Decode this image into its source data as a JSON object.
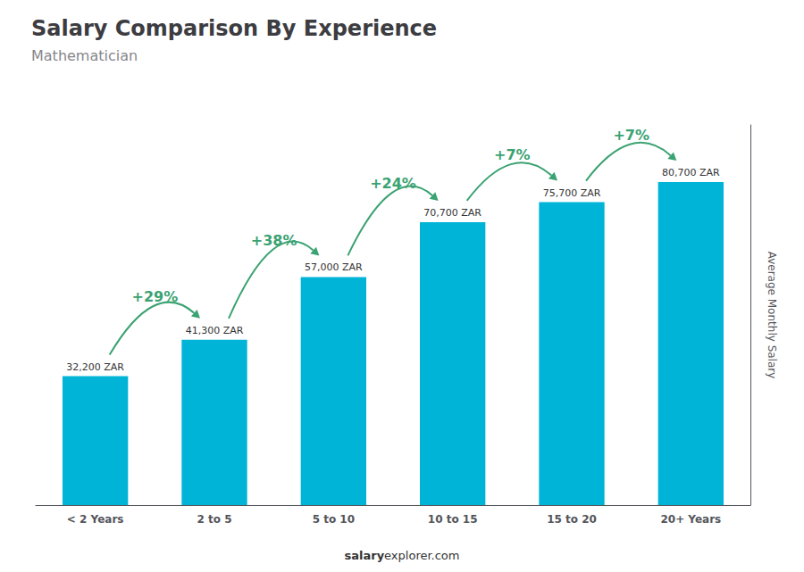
{
  "chart_data": {
    "type": "bar",
    "title": "Salary Comparison By Experience",
    "subtitle": "Mathematician",
    "y_label": "Average Monthly Salary",
    "categories": [
      "< 2 Years",
      "2 to 5",
      "5 to 10",
      "10 to 15",
      "15 to 20",
      "20+ Years"
    ],
    "values": [
      32200,
      41300,
      57000,
      70700,
      75700,
      80700
    ],
    "value_labels": [
      "32,200 ZAR",
      "41,300 ZAR",
      "57,000 ZAR",
      "70,700 ZAR",
      "75,700 ZAR",
      "80,700 ZAR"
    ],
    "data_labels": true,
    "color": "#00b4d8",
    "annotations": [
      "+29%",
      "+38%",
      "+24%",
      "+7%",
      "+7%"
    ],
    "footer": [
      "salary",
      "explorer.com"
    ],
    "ylim": [
      0,
      95000
    ],
    "grid": false,
    "tick_labels": "x"
  }
}
